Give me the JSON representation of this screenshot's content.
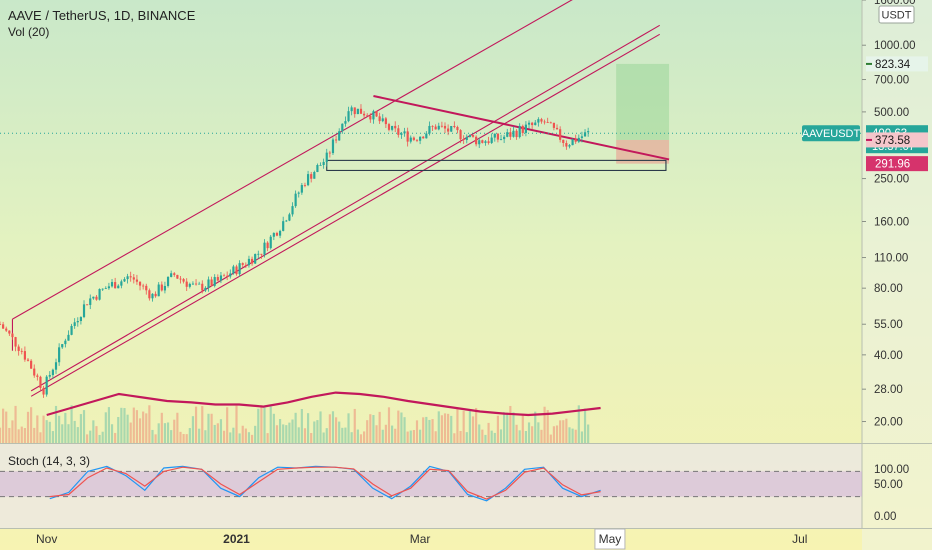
{
  "header": {
    "symbol": "AAVE / TetherUS, 1D, BINANCE",
    "volume_indicator": "Vol (20)",
    "currency_badge": "USDT"
  },
  "price_scale": {
    "ticks": [
      {
        "value": 1600,
        "label": "1600.00"
      },
      {
        "value": 1000,
        "label": "1000.00"
      },
      {
        "value": 700,
        "label": "700.00"
      },
      {
        "value": 500,
        "label": "500.00"
      },
      {
        "value": 250,
        "label": "250.00"
      },
      {
        "value": 160,
        "label": "160.00"
      },
      {
        "value": 110,
        "label": "110.00"
      },
      {
        "value": 80,
        "label": "80.00"
      },
      {
        "value": 55,
        "label": "55.00"
      },
      {
        "value": 40,
        "label": "40.00"
      },
      {
        "value": 28,
        "label": "28.00"
      },
      {
        "value": 20,
        "label": "20.00"
      }
    ],
    "markers": [
      {
        "label": "823.34",
        "value": 823.34,
        "bg": "#e6f4ea",
        "fg": "#1a1a1a",
        "line": "#2e7d32"
      },
      {
        "label": "AAVEUSDT",
        "sub": "400.63",
        "sub2": "13:37:07",
        "value": 400.63,
        "bg": "#26a69a",
        "fg": "#ffffff"
      },
      {
        "label": "373.58",
        "value": 373.58,
        "bg": "#f5c6cb",
        "fg": "#1a1a1a",
        "line": "#c2185b"
      },
      {
        "label": "291.96",
        "value": 291.96,
        "bg": "#d6336c",
        "fg": "#ffffff"
      }
    ]
  },
  "time_axis": {
    "labels": [
      {
        "label": "Nov",
        "date": "2020-11-01"
      },
      {
        "label": "2021",
        "date": "2021-01-01",
        "bold": true
      },
      {
        "label": "Mar",
        "date": "2021-03-01"
      },
      {
        "label": "May",
        "date": "2021-05-01",
        "boxed": true
      },
      {
        "label": "Jul",
        "date": "2021-07-01"
      }
    ]
  },
  "stoch": {
    "title": "Stoch (14, 3, 3)",
    "ticks": [
      {
        "value": 100,
        "label": "100.00"
      },
      {
        "value": 50,
        "label": "50.00"
      },
      {
        "value": 0,
        "label": "0.00"
      }
    ],
    "upper_band": 80,
    "lower_band": 20
  },
  "colors": {
    "up": "#26a69a",
    "down": "#ef5350",
    "drawing": "#c2185b",
    "volume_ma": "#c2185b",
    "stoch_k": "#2196f3",
    "stoch_d": "#ef5350",
    "band_fill": "#c9a7d6"
  },
  "chart_data": {
    "type": "candlestick",
    "title": "AAVE / TetherUS, 1D, BINANCE",
    "y_scale": "log",
    "ylim": [
      16,
      1600
    ],
    "xlim": [
      "2020-10-17",
      "2021-07-21"
    ],
    "series": [
      {
        "name": "AAVE / TetherUS",
        "format": "date, close",
        "x": [
          "2020-10-17",
          "2020-10-24",
          "2020-10-31",
          "2020-11-07",
          "2020-11-14",
          "2020-11-21",
          "2020-11-28",
          "2020-12-05",
          "2020-12-12",
          "2020-12-19",
          "2020-12-26",
          "2021-01-02",
          "2021-01-09",
          "2021-01-16",
          "2021-01-23",
          "2021-01-30",
          "2021-02-06",
          "2021-02-13",
          "2021-02-20",
          "2021-02-27",
          "2021-03-06",
          "2021-03-13",
          "2021-03-20",
          "2021-03-27",
          "2021-04-03",
          "2021-04-10",
          "2021-04-17",
          "2021-04-24"
        ],
        "close": [
          55,
          42,
          28,
          48,
          70,
          82,
          90,
          74,
          92,
          80,
          86,
          100,
          118,
          160,
          245,
          310,
          520,
          490,
          410,
          380,
          430,
          400,
          370,
          380,
          420,
          450,
          360,
          400.63
        ]
      },
      {
        "name": "Vol (20)",
        "format": "volume MA, relative units",
        "values": [
          0.4,
          0.5,
          0.6,
          0.7,
          0.65,
          0.6,
          0.58,
          0.55,
          0.55,
          0.52,
          0.58,
          0.66,
          0.72,
          0.7,
          0.66,
          0.6,
          0.55,
          0.5,
          0.45,
          0.42,
          0.4,
          0.42,
          0.46,
          0.5
        ]
      },
      {
        "name": "Stoch (14, 3, 3)",
        "k": [
          15,
          30,
          80,
          92,
          70,
          35,
          88,
          92,
          85,
          40,
          20,
          65,
          90,
          88,
          92,
          90,
          85,
          40,
          15,
          45,
          92,
          80,
          25,
          10,
          40,
          85,
          90,
          40,
          20,
          35
        ],
        "d": [
          20,
          25,
          65,
          88,
          75,
          45,
          80,
          90,
          85,
          50,
          25,
          55,
          85,
          88,
          90,
          90,
          86,
          50,
          22,
          40,
          85,
          82,
          32,
          14,
          35,
          78,
          88,
          48,
          24,
          32
        ]
      }
    ],
    "drawings": [
      {
        "type": "rising-channel-upper",
        "start": [
          "2020-10-21",
          58
        ],
        "end": [
          "2021-04-22",
          1700
        ]
      },
      {
        "type": "rising-channel-lower",
        "start": [
          "2020-10-27",
          26
        ],
        "end": [
          "2021-05-17",
          1120
        ]
      },
      {
        "type": "rising-channel-lower-2",
        "start": [
          "2020-10-27",
          27.5
        ],
        "end": [
          "2021-05-17",
          1230
        ]
      },
      {
        "type": "descending-trendline",
        "start": [
          "2021-02-14",
          590
        ],
        "end": [
          "2021-05-20",
          305
        ]
      },
      {
        "type": "support-box",
        "from": "2021-01-30",
        "to": "2021-05-19",
        "low": 272,
        "high": 302
      },
      {
        "type": "long-position",
        "from": "2021-05-03",
        "to": "2021-05-20",
        "entry": 373.58,
        "target": 823.34,
        "stop": 291.96
      }
    ]
  }
}
